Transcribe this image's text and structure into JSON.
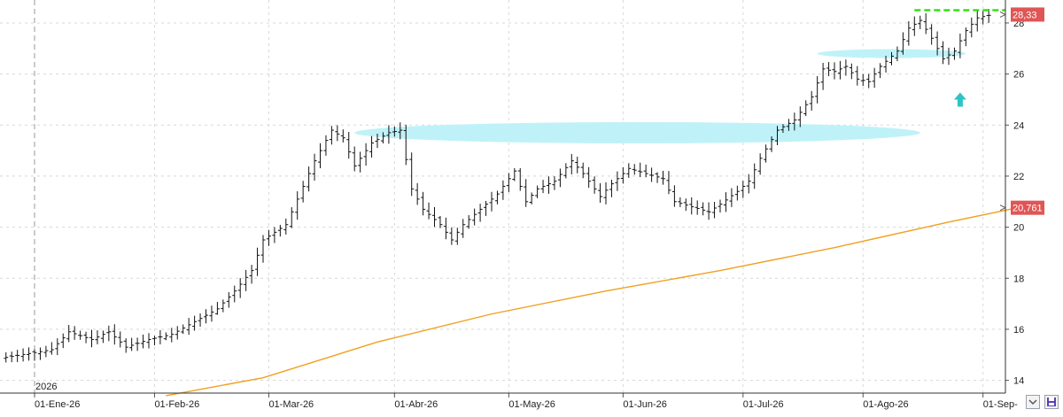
{
  "chart_data": {
    "type": "ohlc",
    "year_label": "2026",
    "x_ticks": [
      {
        "label": "01-Ene-26",
        "i": 0
      },
      {
        "label": "01-Feb-26",
        "i": 21
      },
      {
        "label": "01-Mar-26",
        "i": 41
      },
      {
        "label": "01-Abr-26",
        "i": 63
      },
      {
        "label": "01-May-26",
        "i": 83
      },
      {
        "label": "01-Jun-26",
        "i": 103
      },
      {
        "label": "01-Jul-26",
        "i": 124
      },
      {
        "label": "01-Ago-26",
        "i": 145
      },
      {
        "label": "01-Sep-",
        "i": 166
      }
    ],
    "y_ticks": [
      14,
      16,
      18,
      20,
      22,
      24,
      26,
      28
    ],
    "ylim": [
      13.5,
      28.9
    ],
    "price_series": [
      [
        -5,
        14.9
      ],
      [
        3,
        15.2
      ],
      [
        6,
        15.9
      ],
      [
        10,
        15.6
      ],
      [
        13,
        15.9
      ],
      [
        16,
        15.3
      ],
      [
        20,
        15.6
      ],
      [
        24,
        15.8
      ],
      [
        28,
        16.3
      ],
      [
        32,
        16.8
      ],
      [
        35,
        17.5
      ],
      [
        38,
        18.3
      ],
      [
        40,
        19.5
      ],
      [
        44,
        20.1
      ],
      [
        47,
        21.6
      ],
      [
        49,
        22.6
      ],
      [
        52,
        23.8
      ],
      [
        54,
        23.5
      ],
      [
        56,
        22.4
      ],
      [
        59,
        23.3
      ],
      [
        62,
        23.7
      ],
      [
        64,
        23.8
      ],
      [
        66,
        21.5
      ],
      [
        68,
        20.7
      ],
      [
        71,
        20.1
      ],
      [
        73,
        19.5
      ],
      [
        75,
        20.1
      ],
      [
        78,
        20.7
      ],
      [
        81,
        21.3
      ],
      [
        84,
        22.2
      ],
      [
        86,
        21.0
      ],
      [
        88,
        21.5
      ],
      [
        91,
        21.8
      ],
      [
        94,
        22.6
      ],
      [
        96,
        22.1
      ],
      [
        99,
        21.2
      ],
      [
        101,
        21.7
      ],
      [
        104,
        22.3
      ],
      [
        107,
        22.1
      ],
      [
        110,
        21.9
      ],
      [
        112,
        21.0
      ],
      [
        115,
        20.8
      ],
      [
        118,
        20.6
      ],
      [
        120,
        20.9
      ],
      [
        123,
        21.4
      ],
      [
        125,
        21.8
      ],
      [
        127,
        22.7
      ],
      [
        130,
        23.8
      ],
      [
        133,
        24.2
      ],
      [
        136,
        25.1
      ],
      [
        138,
        26.2
      ],
      [
        140,
        26.1
      ],
      [
        142,
        26.3
      ],
      [
        144,
        25.8
      ],
      [
        146,
        25.7
      ],
      [
        148,
        26.3
      ],
      [
        151,
        26.9
      ],
      [
        153,
        27.8
      ],
      [
        155,
        28.1
      ],
      [
        157,
        27.4
      ],
      [
        159,
        26.6
      ],
      [
        161,
        26.9
      ],
      [
        163,
        27.7
      ],
      [
        165,
        28.2
      ],
      [
        167,
        28.3
      ]
    ],
    "moving_average": {
      "x": [
        23,
        40,
        60,
        80,
        100,
        120,
        140,
        160,
        172
      ],
      "y": [
        13.4,
        14.1,
        15.5,
        16.6,
        17.5,
        18.3,
        19.2,
        20.2,
        20.76
      ]
    },
    "zones": [
      {
        "i0": 56,
        "i1": 155,
        "y": 23.7
      },
      {
        "i0": 137,
        "i1": 163,
        "y": 26.8
      }
    ],
    "resistance_level": 28.5,
    "resistance_range": [
      154,
      170
    ],
    "arrow_at": [
      162,
      25.0
    ],
    "last_price_label": "28,33",
    "ma_value_label": "20,761",
    "colors": {
      "bars": "#111111",
      "moving_average": "#f0a020",
      "zone": "#bff2f8",
      "resistance": "#22dd00",
      "arrow": "#2ec4c4",
      "value_tag": "#e05555",
      "grid": "#d8d8d8"
    }
  }
}
